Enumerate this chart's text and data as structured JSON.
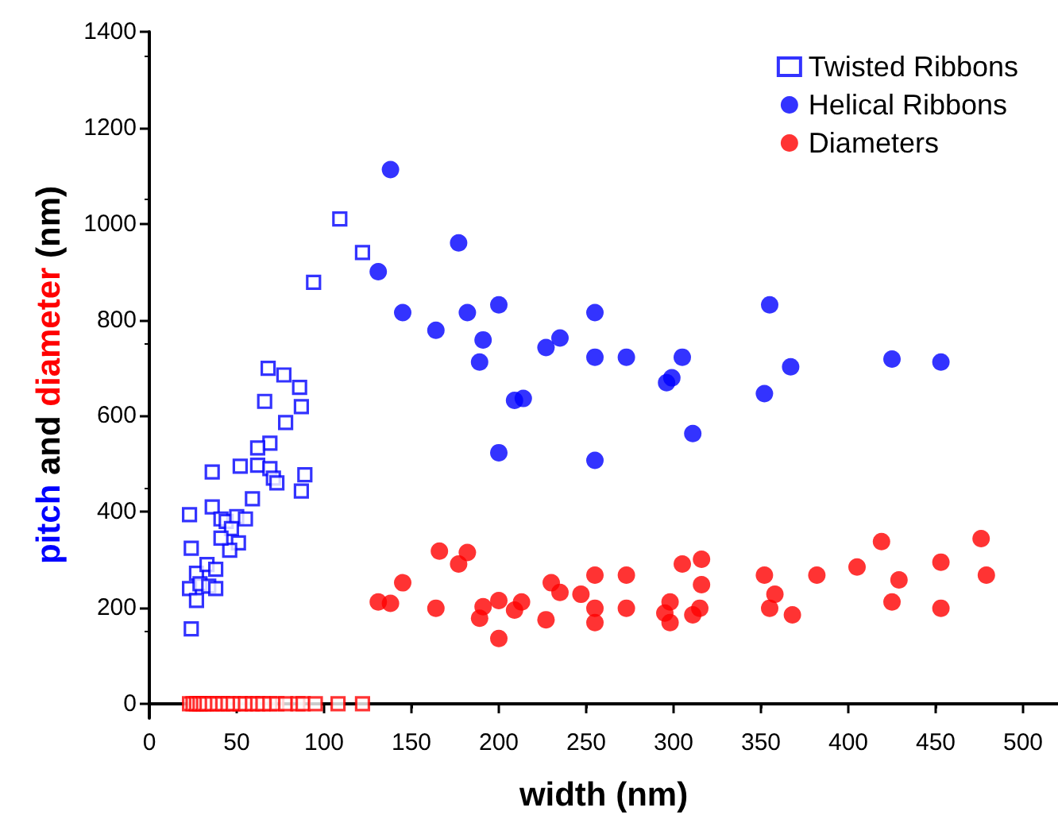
{
  "chart_data": {
    "type": "scatter",
    "xlabel": "width (nm)",
    "ylabel": "pitch and diameter (nm)",
    "xlim": [
      0,
      520
    ],
    "xticks": [
      0,
      50,
      100,
      150,
      200,
      250,
      300,
      350,
      400,
      450,
      500
    ],
    "ylim": [
      -30,
      1400
    ],
    "yticks": [
      0,
      200,
      400,
      600,
      800,
      1000,
      1200,
      1400
    ],
    "grid": false,
    "legend": "top right",
    "series": [
      {
        "name": "Twisted Ribbons",
        "color": "#0000ff",
        "marker": "square",
        "x": [
          109,
          122,
          94,
          68,
          77,
          86,
          66,
          87,
          78,
          69,
          62,
          52,
          62,
          36,
          69,
          71,
          73,
          89,
          87,
          59,
          23,
          36,
          41,
          44,
          50,
          55,
          47,
          51,
          46,
          41,
          24,
          27,
          33,
          38,
          23,
          27,
          29,
          34,
          38,
          24
        ],
        "values": [
          1010,
          940,
          878,
          699,
          685,
          659,
          630,
          619,
          586,
          543,
          533,
          495,
          497,
          483,
          490,
          470,
          460,
          477,
          443,
          427,
          394,
          410,
          385,
          380,
          390,
          385,
          365,
          335,
          320,
          345,
          324,
          272,
          290,
          280,
          240,
          215,
          250,
          245,
          240,
          156
        ]
      },
      {
        "color": "#ff0000",
        "marker": "square",
        "x": [
          23,
          25,
          27,
          29,
          31,
          33,
          36,
          39,
          42,
          45,
          48,
          52,
          55,
          59,
          62,
          65,
          69,
          73,
          78,
          85,
          88,
          95,
          108,
          122
        ],
        "values": [
          0,
          0,
          0,
          0,
          0,
          0,
          0,
          0,
          0,
          0,
          0,
          0,
          0,
          0,
          0,
          0,
          0,
          0,
          0,
          0,
          0,
          0,
          0,
          0
        ]
      },
      {
        "name": "Helical Ribbons",
        "color": "#0000ff",
        "marker": "circle",
        "x": [
          138,
          177,
          131,
          145,
          164,
          182,
          200,
          191,
          189,
          200,
          255,
          227,
          235,
          255,
          273,
          305,
          209,
          214,
          296,
          299,
          311,
          255,
          355,
          352,
          367,
          425,
          453
        ],
        "values": [
          1113,
          960,
          900,
          815,
          778,
          815,
          831,
          758,
          712,
          523,
          815,
          742,
          762,
          722,
          722,
          722,
          632,
          636,
          669,
          679,
          563,
          507,
          831,
          646,
          702,
          718,
          712
        ]
      },
      {
        "name": "Diameters",
        "color": "#ff0000",
        "marker": "circle",
        "x": [
          166,
          182,
          177,
          145,
          131,
          138,
          164,
          191,
          189,
          200,
          200,
          209,
          213,
          227,
          230,
          235,
          247,
          255,
          255,
          255,
          273,
          273,
          305,
          316,
          316,
          298,
          295,
          298,
          311,
          315,
          352,
          358,
          355,
          368,
          382,
          405,
          419,
          429,
          425,
          453,
          453,
          476,
          479
        ],
        "values": [
          318,
          315,
          291,
          252,
          212,
          209,
          199,
          202,
          178,
          215,
          136,
          195,
          212,
          175,
          252,
          232,
          228,
          268,
          199,
          169,
          268,
          199,
          291,
          301,
          248,
          212,
          189,
          169,
          185,
          199,
          268,
          228,
          199,
          185,
          268,
          285,
          338,
          258,
          212,
          295,
          199,
          344,
          268
        ]
      }
    ]
  }
}
